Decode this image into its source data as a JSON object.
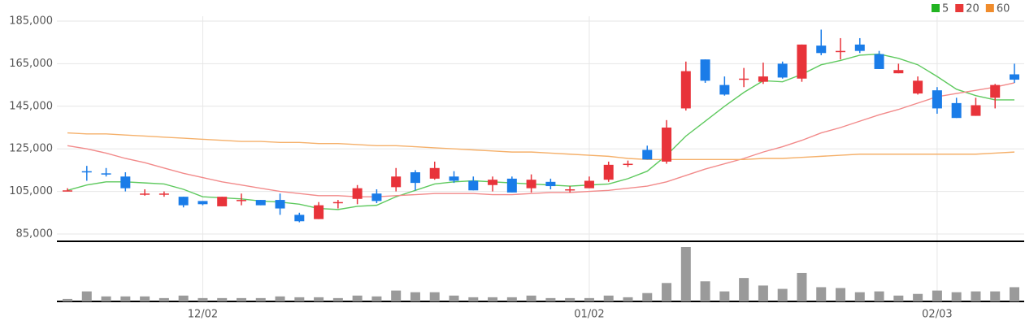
{
  "chart_data": {
    "type": "candlestick",
    "categories": [
      null,
      null,
      null,
      null,
      null,
      null,
      null,
      "12/02",
      null,
      null,
      null,
      null,
      null,
      null,
      null,
      null,
      null,
      null,
      null,
      null,
      null,
      null,
      null,
      null,
      null,
      null,
      null,
      "01/02",
      null,
      null,
      null,
      null,
      null,
      null,
      null,
      null,
      null,
      null,
      null,
      null,
      null,
      null,
      null,
      null,
      null,
      "02/03",
      null,
      null,
      null,
      null
    ],
    "open": [
      105500,
      114500,
      113500,
      112000,
      104000,
      104000,
      102500,
      100500,
      98000,
      101000,
      101000,
      101000,
      94000,
      92000,
      100000,
      101500,
      104000,
      107000,
      114000,
      111000,
      112000,
      110000,
      108000,
      111000,
      106500,
      109500,
      106000,
      106500,
      110500,
      118000,
      124500,
      119000,
      144000,
      167000,
      155000,
      158000,
      156500,
      165000,
      158000,
      173500,
      171000,
      174000,
      169500,
      160500,
      151000,
      152500,
      146500,
      140500,
      149000,
      160000
    ],
    "high": [
      106500,
      117000,
      116000,
      114000,
      106000,
      105000,
      102500,
      100500,
      102500,
      104000,
      101000,
      104000,
      95000,
      100000,
      101000,
      108000,
      106000,
      116000,
      115000,
      119000,
      114500,
      112000,
      112000,
      112000,
      113000,
      111000,
      107500,
      112000,
      119000,
      119500,
      126500,
      138500,
      166000,
      167000,
      159000,
      163000,
      165500,
      166000,
      174000,
      181000,
      177000,
      177000,
      171000,
      165000,
      159000,
      154000,
      149000,
      149000,
      155500,
      165000
    ],
    "low": [
      105000,
      110000,
      112000,
      105000,
      103000,
      102500,
      97500,
      98500,
      98000,
      98500,
      98500,
      94000,
      90500,
      92000,
      97000,
      99000,
      99500,
      105000,
      105500,
      110500,
      109000,
      105500,
      105000,
      104500,
      104500,
      106000,
      104500,
      106500,
      109500,
      116500,
      120000,
      118000,
      143000,
      156000,
      150000,
      154000,
      155500,
      158000,
      156500,
      169000,
      167000,
      170000,
      162500,
      160500,
      150500,
      141500,
      139500,
      140500,
      144000,
      156000
    ],
    "close": [
      105500,
      114000,
      113000,
      106500,
      104000,
      104000,
      98500,
      99000,
      102500,
      101000,
      98500,
      97000,
      91000,
      98500,
      100000,
      106500,
      100500,
      112000,
      109000,
      116000,
      110000,
      105500,
      110500,
      104500,
      110500,
      107500,
      106000,
      110000,
      117500,
      118000,
      120000,
      135000,
      161500,
      157000,
      150500,
      158000,
      159000,
      158500,
      174000,
      170000,
      171000,
      171000,
      162500,
      162000,
      157000,
      144000,
      139500,
      145500,
      155000,
      157500
    ],
    "series": [
      {
        "name": "5",
        "color": "#5ec95e",
        "legend_color": "#22b422",
        "values": [
          105500,
          108000,
          109500,
          109500,
          109000,
          108500,
          106000,
          102500,
          102000,
          101500,
          100500,
          100000,
          99000,
          97000,
          96500,
          98000,
          98500,
          102500,
          105500,
          108500,
          109500,
          110000,
          109500,
          109000,
          108500,
          108000,
          107500,
          108000,
          108500,
          111000,
          114500,
          122000,
          131000,
          138000,
          145000,
          151500,
          157000,
          156500,
          160000,
          164500,
          166500,
          169000,
          169500,
          167500,
          164500,
          159000,
          153000,
          150000,
          148000,
          148000
        ]
      },
      {
        "name": "20",
        "color": "#f28a8a",
        "legend_color": "#e83838",
        "values": [
          126500,
          125000,
          123000,
          120500,
          118500,
          116000,
          113500,
          111500,
          109500,
          108000,
          106500,
          105000,
          104000,
          103000,
          103000,
          102500,
          102500,
          103000,
          103500,
          104000,
          104000,
          104000,
          103500,
          103500,
          104000,
          104500,
          104500,
          105000,
          105500,
          106500,
          107500,
          109500,
          112500,
          115500,
          118000,
          120500,
          123500,
          126000,
          129000,
          132500,
          135000,
          138000,
          141000,
          143500,
          146500,
          149500,
          151000,
          152500,
          154000,
          156000
        ]
      },
      {
        "name": "60",
        "color": "#f5b06a",
        "legend_color": "#f08c2c",
        "values": [
          132500,
          132000,
          132000,
          131500,
          131000,
          130500,
          130000,
          129500,
          129000,
          128500,
          128500,
          128000,
          128000,
          127500,
          127500,
          127000,
          126500,
          126500,
          126000,
          125500,
          125000,
          124500,
          124000,
          123500,
          123500,
          123000,
          122500,
          122000,
          121500,
          120500,
          120000,
          120000,
          120000,
          120000,
          120000,
          120000,
          120500,
          120500,
          121000,
          121500,
          122000,
          122500,
          122500,
          122500,
          122500,
          122500,
          122500,
          122500,
          123000,
          123500
        ]
      }
    ],
    "up_color": "#e8333a",
    "down_color": "#1a7ce8",
    "volume": [
      3,
      12,
      6,
      6,
      6,
      4,
      7,
      4,
      4,
      4,
      4,
      6,
      5,
      5,
      4,
      7,
      6,
      13,
      11,
      11,
      7,
      5,
      5,
      5,
      7,
      4,
      4,
      4,
      7,
      5,
      10,
      22,
      65,
      24,
      12,
      28,
      19,
      15,
      34,
      17,
      16,
      11,
      12,
      7,
      9,
      13,
      11,
      12,
      12,
      17
    ],
    "volume_color": "#9a9a9a",
    "ylim": [
      85000,
      185000
    ],
    "yticks": [
      {
        "value": 85000,
        "label": "85,000"
      },
      {
        "value": 105000,
        "label": "105,000"
      },
      {
        "value": 125000,
        "label": "125,000"
      },
      {
        "value": 145000,
        "label": "145,000"
      },
      {
        "value": 165000,
        "label": "165,000"
      },
      {
        "value": 185000,
        "label": "185,000"
      }
    ],
    "grid": true
  }
}
